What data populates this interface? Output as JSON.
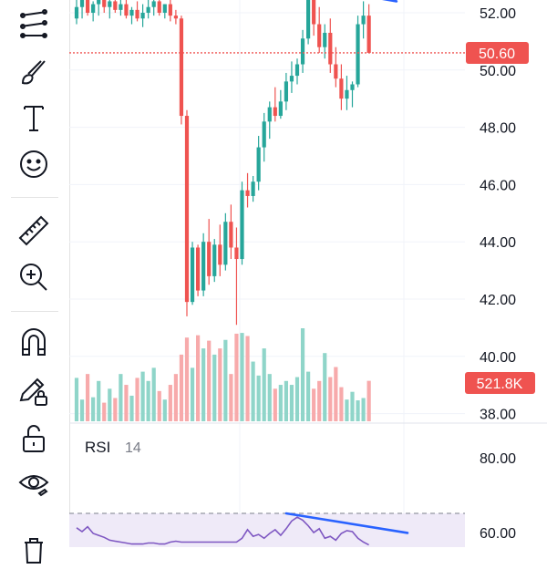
{
  "toolbar": {
    "tools": [
      {
        "name": "trend-line-tool",
        "icon": "trend-lines-icon"
      },
      {
        "name": "brush-tool",
        "icon": "brush-icon"
      },
      {
        "name": "text-tool",
        "icon": "text-icon"
      },
      {
        "name": "emoji-tool",
        "icon": "emoji-icon"
      },
      {
        "name": "measure-tool",
        "icon": "ruler-icon"
      },
      {
        "name": "zoom-in-tool",
        "icon": "zoom-in-icon"
      },
      {
        "name": "magnet-tool",
        "icon": "magnet-icon"
      },
      {
        "name": "lock-drawings-tool",
        "icon": "pencil-lock-icon"
      },
      {
        "name": "lock-all-tool",
        "icon": "unlock-icon"
      },
      {
        "name": "hide-drawings-tool",
        "icon": "eye-icon"
      },
      {
        "name": "remove-tool",
        "icon": "trash-icon"
      }
    ]
  },
  "price_scale": {
    "labels": [
      "52.00",
      "50.00",
      "48.00",
      "46.00",
      "44.00",
      "42.00",
      "40.00",
      "38.00"
    ],
    "current_price": "50.60",
    "current_volume": "521.8K"
  },
  "rsi_panel": {
    "title": "RSI",
    "length": "14",
    "labels": [
      "80.00",
      "60.00"
    ]
  },
  "colors": {
    "up": "#26a69a",
    "down": "#ef5350",
    "up_volume": "#8fd5c9",
    "down_volume": "#f7aaab",
    "rsi_line": "#7e57c2",
    "rsi_band": "#efeaf8",
    "trend_line": "#2962ff",
    "price_line": "#ef5350"
  },
  "chart_data": {
    "type": "candlestick",
    "price_range": [
      38,
      53
    ],
    "candles_ohlc": [
      [
        51.8,
        52.6,
        51.6,
        52.2
      ],
      [
        52.2,
        52.8,
        51.8,
        52.5
      ],
      [
        52.5,
        52.7,
        51.9,
        52.0
      ],
      [
        52.0,
        52.4,
        51.7,
        52.3
      ],
      [
        52.3,
        52.8,
        51.9,
        52.6
      ],
      [
        52.6,
        52.8,
        52.0,
        52.2
      ],
      [
        52.2,
        52.6,
        51.8,
        52.4
      ],
      [
        52.4,
        52.9,
        52.0,
        52.1
      ],
      [
        52.1,
        52.5,
        51.9,
        52.3
      ],
      [
        52.3,
        52.6,
        51.8,
        51.9
      ],
      [
        51.9,
        52.2,
        51.6,
        52.1
      ],
      [
        52.1,
        52.4,
        51.7,
        51.8
      ],
      [
        51.8,
        52.3,
        51.5,
        52.0
      ],
      [
        52.0,
        52.5,
        51.8,
        52.2
      ],
      [
        52.2,
        52.6,
        51.9,
        52.4
      ],
      [
        52.4,
        52.6,
        51.9,
        52.0
      ],
      [
        52.0,
        52.3,
        51.8,
        52.3
      ],
      [
        52.3,
        52.5,
        51.7,
        51.9
      ],
      [
        51.9,
        52.1,
        51.6,
        51.8
      ],
      [
        51.8,
        51.9,
        48.1,
        48.4
      ],
      [
        48.4,
        48.6,
        41.4,
        41.9
      ],
      [
        41.9,
        44.0,
        41.8,
        43.8
      ],
      [
        43.8,
        43.9,
        42.1,
        42.3
      ],
      [
        42.3,
        44.3,
        42.1,
        44.0
      ],
      [
        44.0,
        44.8,
        42.5,
        42.8
      ],
      [
        42.8,
        44.1,
        42.6,
        43.9
      ],
      [
        43.9,
        44.6,
        42.8,
        43.2
      ],
      [
        43.2,
        45.0,
        43.0,
        44.7
      ],
      [
        44.7,
        45.3,
        43.4,
        43.8
      ],
      [
        43.8,
        44.5,
        41.1,
        43.4
      ],
      [
        43.4,
        46.1,
        43.2,
        45.8
      ],
      [
        45.8,
        46.4,
        45.2,
        45.6
      ],
      [
        45.6,
        46.3,
        45.4,
        46.1
      ],
      [
        46.1,
        47.7,
        45.8,
        47.3
      ],
      [
        47.3,
        48.5,
        46.8,
        48.2
      ],
      [
        48.2,
        48.9,
        47.6,
        48.7
      ],
      [
        48.7,
        49.4,
        48.2,
        48.4
      ],
      [
        48.4,
        49.3,
        48.3,
        48.9
      ],
      [
        48.9,
        49.9,
        48.6,
        49.6
      ],
      [
        49.6,
        50.3,
        49.2,
        49.8
      ],
      [
        49.8,
        50.4,
        49.5,
        50.2
      ],
      [
        50.2,
        51.4,
        49.9,
        51.1
      ],
      [
        51.1,
        53.0,
        50.9,
        52.7
      ],
      [
        52.7,
        53.0,
        51.2,
        51.6
      ],
      [
        51.6,
        52.2,
        50.6,
        50.8
      ],
      [
        50.8,
        51.6,
        50.4,
        51.3
      ],
      [
        51.3,
        51.8,
        49.9,
        50.2
      ],
      [
        50.2,
        50.8,
        49.4,
        49.7
      ],
      [
        49.7,
        50.2,
        48.6,
        49.0
      ],
      [
        49.0,
        49.8,
        48.6,
        49.3
      ],
      [
        49.3,
        49.6,
        48.7,
        49.5
      ],
      [
        49.5,
        51.9,
        49.4,
        51.6
      ],
      [
        51.6,
        52.4,
        51.1,
        51.9
      ],
      [
        51.9,
        52.3,
        50.6,
        50.6
      ]
    ],
    "volumes_thousands": [
      560,
      280,
      610,
      310,
      520,
      240,
      420,
      300,
      610,
      470,
      330,
      560,
      640,
      520,
      690,
      390,
      280,
      470,
      610,
      860,
      1080,
      690,
      1110,
      940,
      1040,
      860,
      940,
      1050,
      610,
      1130,
      1140,
      1100,
      770,
      590,
      940,
      610,
      420,
      470,
      520,
      470,
      570,
      1200,
      640,
      420,
      520,
      880,
      570,
      700,
      440,
      280,
      380,
      270,
      300,
      521.8
    ],
    "rsi": [
      62.5,
      60.5,
      63.0,
      59.5,
      58.5,
      57.5,
      56.0,
      55.5,
      55.0,
      54.5,
      54.0,
      54.0,
      54.0,
      54.5,
      54.5,
      54.0,
      54.0,
      55.0,
      55.5,
      55.0,
      55.0,
      55.0,
      55.0,
      55.0,
      55.0,
      55.0,
      55.0,
      55.0,
      55.0,
      55.0,
      57.0,
      61.5,
      58.0,
      59.0,
      57.0,
      59.5,
      61.5,
      58.5,
      62.0,
      66.0,
      68.0,
      66.5,
      63.5,
      60.0,
      62.0,
      57.0,
      58.0,
      56.0,
      59.5,
      61.0,
      60.5,
      57.0,
      55.0,
      53.5
    ],
    "rsi_upper_band": 70,
    "trend_lines": [
      {
        "pane": "price",
        "from": [
          40,
          53.0
        ],
        "to": [
          58,
          52.4
        ]
      },
      {
        "pane": "rsi",
        "from": [
          38,
          70.0
        ],
        "to": [
          60,
          59.8
        ]
      }
    ]
  }
}
